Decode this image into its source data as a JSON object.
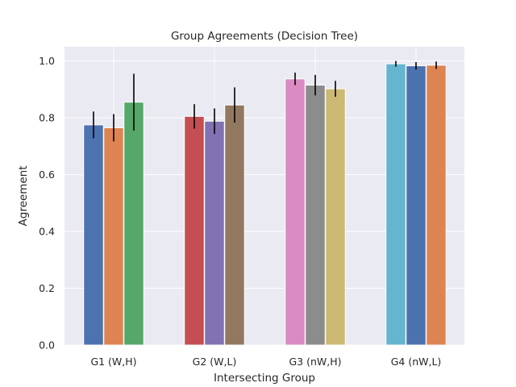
{
  "chart_data": {
    "type": "bar",
    "title": "Group Agreements (Decision Tree)",
    "xlabel": "Intersecting Group",
    "ylabel": "Agreement",
    "ylim": [
      0,
      1.05
    ],
    "yticks": [
      0.0,
      0.2,
      0.4,
      0.6,
      0.8,
      1.0
    ],
    "ytick_labels": [
      "0.0",
      "0.2",
      "0.4",
      "0.6",
      "0.8",
      "1.0"
    ],
    "grid": true,
    "groups": [
      {
        "label": "G1 (W,H)",
        "bars": [
          {
            "value": 0.775,
            "error": 0.047,
            "color": "#4c72b0"
          },
          {
            "value": 0.765,
            "error": 0.048,
            "color": "#dd8452"
          },
          {
            "value": 0.855,
            "error": 0.1,
            "color": "#55a868"
          }
        ]
      },
      {
        "label": "G2 (W,L)",
        "bars": [
          {
            "value": 0.805,
            "error": 0.043,
            "color": "#c44e52"
          },
          {
            "value": 0.788,
            "error": 0.045,
            "color": "#8172b3"
          },
          {
            "value": 0.845,
            "error": 0.062,
            "color": "#937860"
          }
        ]
      },
      {
        "label": "G3 (nW,H)",
        "bars": [
          {
            "value": 0.937,
            "error": 0.022,
            "color": "#da8bc3"
          },
          {
            "value": 0.915,
            "error": 0.036,
            "color": "#8c8c8c"
          },
          {
            "value": 0.902,
            "error": 0.028,
            "color": "#ccb974"
          }
        ]
      },
      {
        "label": "G4 (nW,L)",
        "bars": [
          {
            "value": 0.99,
            "error": 0.01,
            "color": "#64b5cd"
          },
          {
            "value": 0.983,
            "error": 0.013,
            "color": "#4c72b0"
          },
          {
            "value": 0.985,
            "error": 0.013,
            "color": "#dd8452"
          }
        ]
      }
    ]
  }
}
